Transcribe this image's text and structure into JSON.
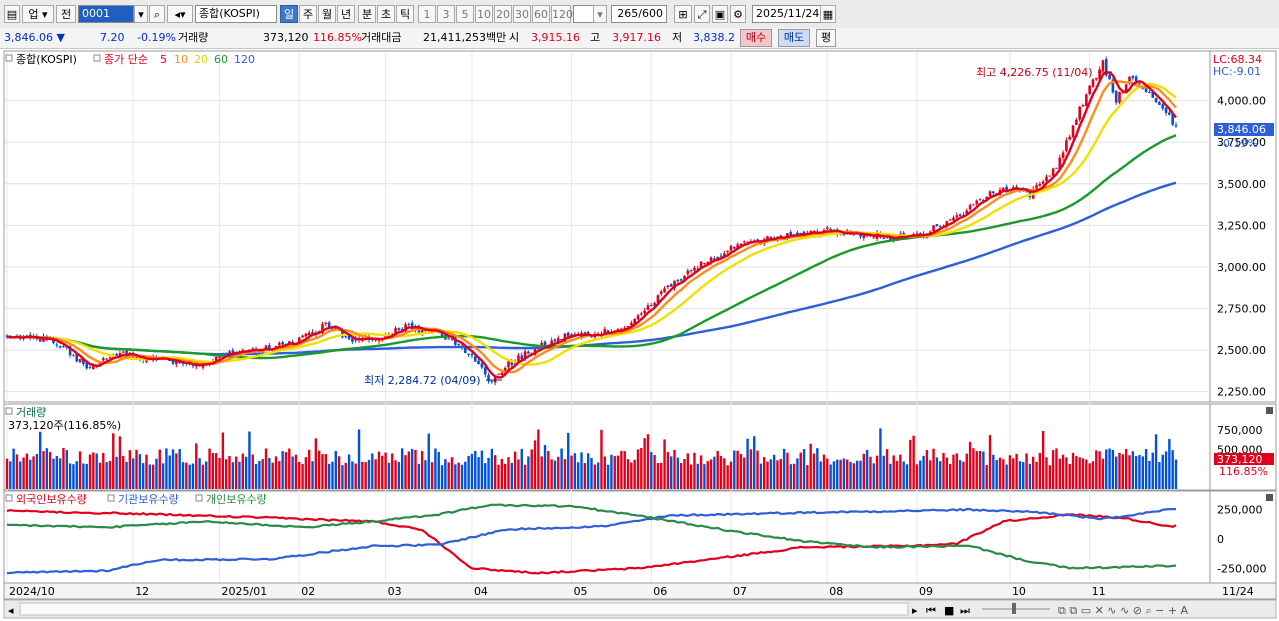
{
  "toolbar": {
    "market": "업",
    "prev": "전",
    "code": "0001",
    "name": "종합(KOSPI)",
    "periods": [
      "일",
      "주",
      "월",
      "년",
      "분",
      "초",
      "틱"
    ],
    "active_period": "일",
    "intervals": [
      "1",
      "3",
      "5",
      "10",
      "20",
      "30",
      "60",
      "120"
    ],
    "count": "265",
    "count_max": "/600",
    "date": "2025/11/24"
  },
  "quote": {
    "price": "3,846.06",
    "arrow": "▼",
    "change": "7.20",
    "change_pct": "-0.19%",
    "volume_label": "거래량",
    "volume": "373,120",
    "volume_pct": "116.85%",
    "amount_label": "거래대금",
    "amount": "21,411,253백만",
    "open_label": "시",
    "open": "3,915.16",
    "high_label": "고",
    "high": "3,917.16",
    "low_label": "저",
    "low": "3,838.2",
    "buy": "매수",
    "sell": "매도",
    "eval": "평"
  },
  "colors": {
    "up": "#e0001b",
    "down": "#0050d8",
    "ma5": "#e0001b",
    "ma10": "#ff8c1a",
    "ma20": "#f0e000",
    "ma60": "#1a9a2a",
    "ma120": "#2e5fd8",
    "foreign": "#e0001b",
    "inst": "#2e5fd8",
    "indiv": "#2a8a4a"
  },
  "chart_data": [
    {
      "type": "candlestick",
      "title": "종합(KOSPI)",
      "legend_prefix": "종가 단순",
      "ma_periods": [
        "5",
        "10",
        "20",
        "60",
        "120"
      ],
      "ylim": [
        2200,
        4280
      ],
      "y_ticks": [
        2250,
        2500,
        2750,
        3000,
        3250,
        3500,
        3750,
        4000
      ],
      "y_tick_labels": [
        "2,250.00",
        "2,500.00",
        "2,750.00",
        "3,000.00",
        "3,250.00",
        "3,500.00",
        "3,750.00",
        "4,000.00"
      ],
      "x_labels": [
        "2024/10",
        "12",
        "2025/01",
        "02",
        "03",
        "04",
        "05",
        "06",
        "07",
        "08",
        "09",
        "10",
        "11"
      ],
      "x_label_right": "11/24",
      "last_price_label": "3,846.06",
      "last_change_label": "-0.19%",
      "last_price": 3846.06,
      "high_annotation": "최고 4,226.75 (11/04)",
      "high_value": 4226.75,
      "low_annotation": "최저 2,284.72 (04/09)",
      "low_value": 2284.72,
      "lc_label": "LC:68.34",
      "hc_label": "HC:-9.01",
      "anchors": [
        [
          0,
          2590
        ],
        [
          14,
          2560
        ],
        [
          24,
          2400
        ],
        [
          34,
          2480
        ],
        [
          46,
          2440
        ],
        [
          56,
          2400
        ],
        [
          66,
          2470
        ],
        [
          76,
          2500
        ],
        [
          86,
          2540
        ],
        [
          96,
          2650
        ],
        [
          104,
          2560
        ],
        [
          112,
          2580
        ],
        [
          120,
          2640
        ],
        [
          128,
          2610
        ],
        [
          136,
          2540
        ],
        [
          142,
          2410
        ],
        [
          146,
          2300
        ],
        [
          150,
          2400
        ],
        [
          158,
          2500
        ],
        [
          168,
          2580
        ],
        [
          178,
          2600
        ],
        [
          188,
          2650
        ],
        [
          196,
          2820
        ],
        [
          204,
          2950
        ],
        [
          212,
          3050
        ],
        [
          222,
          3150
        ],
        [
          234,
          3180
        ],
        [
          248,
          3220
        ],
        [
          256,
          3200
        ],
        [
          266,
          3180
        ],
        [
          276,
          3200
        ],
        [
          286,
          3300
        ],
        [
          296,
          3440
        ],
        [
          302,
          3480
        ],
        [
          308,
          3430
        ],
        [
          316,
          3600
        ],
        [
          322,
          3900
        ],
        [
          326,
          4080
        ],
        [
          330,
          4226
        ],
        [
          334,
          4000
        ],
        [
          338,
          4150
        ],
        [
          344,
          4050
        ],
        [
          350,
          3900
        ],
        [
          352,
          3846
        ]
      ],
      "x_label_index": [
        0,
        38,
        64,
        88,
        114,
        140,
        170,
        194,
        218,
        247,
        274,
        302,
        326
      ]
    },
    {
      "type": "bar",
      "title": "거래량",
      "subtitle": "373,120주(116.85%)",
      "y_tick_labels": [
        "750,000",
        "500,000"
      ],
      "y_ticks": [
        750000,
        500000
      ],
      "ylim": [
        0,
        1000000
      ],
      "last_label": "373,120",
      "last_pct": "116.85%"
    },
    {
      "type": "line",
      "series": [
        {
          "name": "외국인보유수량",
          "anchors": [
            [
              0,
              240000
            ],
            [
              40,
              215000
            ],
            [
              80,
              180000
            ],
            [
              110,
              150000
            ],
            [
              125,
              80000
            ],
            [
              140,
              -250000
            ],
            [
              160,
              -290000
            ],
            [
              190,
              -250000
            ],
            [
              210,
              -180000
            ],
            [
              240,
              -70000
            ],
            [
              270,
              -60000
            ],
            [
              286,
              -40000
            ],
            [
              300,
              150000
            ],
            [
              320,
              210000
            ],
            [
              336,
              180000
            ],
            [
              350,
              110000
            ]
          ]
        },
        {
          "name": "기관보유수량",
          "anchors": [
            [
              0,
              -290000
            ],
            [
              30,
              -270000
            ],
            [
              45,
              -180000
            ],
            [
              80,
              -170000
            ],
            [
              110,
              -60000
            ],
            [
              130,
              -50000
            ],
            [
              150,
              80000
            ],
            [
              180,
              110000
            ],
            [
              200,
              200000
            ],
            [
              230,
              220000
            ],
            [
              270,
              240000
            ],
            [
              290,
              250000
            ],
            [
              310,
              230000
            ],
            [
              330,
              170000
            ],
            [
              350,
              250000
            ]
          ]
        },
        {
          "name": "개인보유수량",
          "anchors": [
            [
              0,
              120000
            ],
            [
              30,
              100000
            ],
            [
              60,
              150000
            ],
            [
              90,
              100000
            ],
            [
              110,
              150000
            ],
            [
              130,
              210000
            ],
            [
              145,
              290000
            ],
            [
              170,
              280000
            ],
            [
              190,
              200000
            ],
            [
              220,
              60000
            ],
            [
              240,
              -20000
            ],
            [
              260,
              -70000
            ],
            [
              290,
              -60000
            ],
            [
              306,
              -180000
            ],
            [
              320,
              -250000
            ],
            [
              336,
              -240000
            ],
            [
              350,
              -230000
            ]
          ]
        }
      ],
      "ylim": [
        -350000,
        350000
      ],
      "y_ticks": [
        250000,
        0,
        -250000
      ],
      "y_tick_labels": [
        "250,000",
        "0",
        "-250,000"
      ]
    }
  ]
}
